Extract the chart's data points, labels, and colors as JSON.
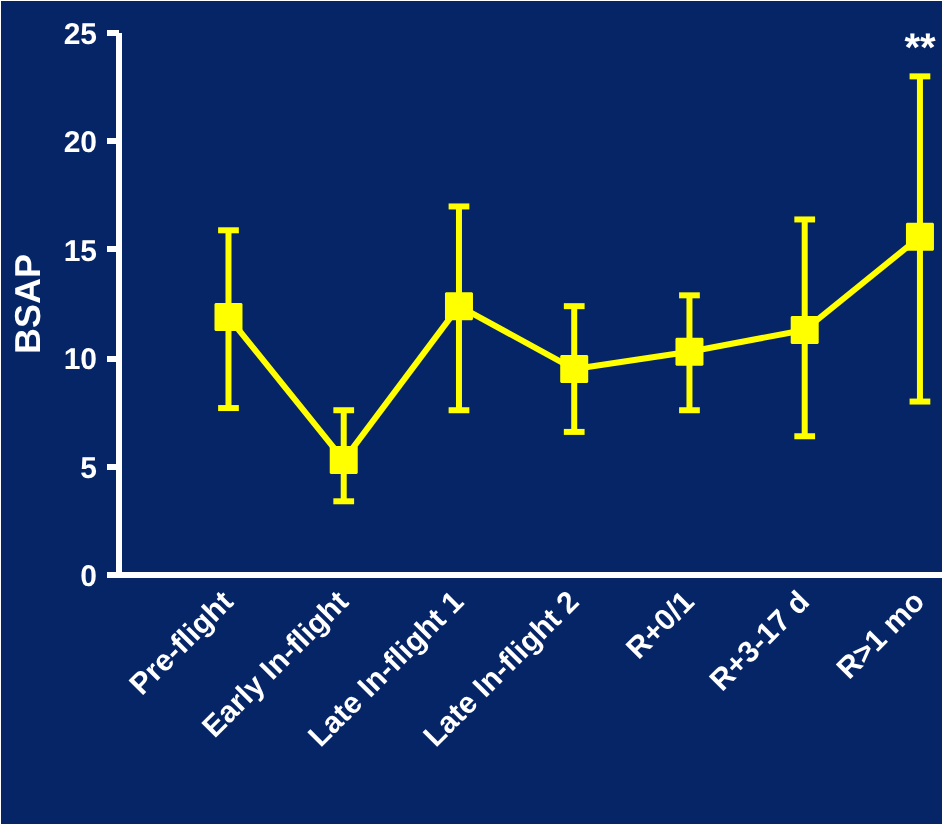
{
  "chart_data": {
    "type": "line",
    "ylabel": "BSAP",
    "categories": [
      "Pre-flight",
      "Early In-flight",
      "Late In-flight 1",
      "Late In-flight 2",
      "R+0/1",
      "R+3-17 d",
      "R>1 mo"
    ],
    "series": [
      {
        "color": "#ffff00",
        "values": [
          11.9,
          5.3,
          12.4,
          9.5,
          10.3,
          11.3,
          15.6
        ],
        "errors": [
          [
            7.7,
            15.9
          ],
          [
            3.4,
            7.6
          ],
          [
            7.6,
            17.0
          ],
          [
            6.6,
            12.4
          ],
          [
            7.6,
            12.9
          ],
          [
            6.4,
            16.4
          ],
          [
            8.0,
            23.0
          ]
        ]
      }
    ],
    "ylim": [
      0,
      25
    ],
    "yticks": [
      0,
      5,
      10,
      15,
      20,
      25
    ],
    "marker": "square",
    "line_style": "solid",
    "grid": false,
    "annotations": [
      "**"
    ]
  }
}
